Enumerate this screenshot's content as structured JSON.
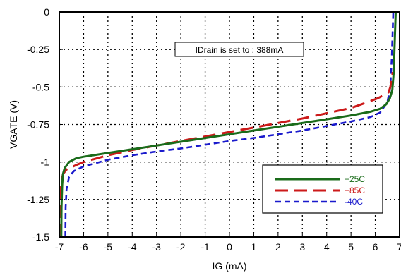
{
  "chart_data": {
    "type": "line",
    "xlabel": "IG (mA)",
    "ylabel": "VGATE (V)",
    "xlim": [
      -7,
      7
    ],
    "ylim": [
      -1.5,
      0
    ],
    "xticks": [
      -7,
      -6,
      -5,
      -4,
      -3,
      -2,
      -1,
      0,
      1,
      2,
      3,
      4,
      5,
      6,
      7
    ],
    "xtick_labels": [
      "-7",
      "-6",
      "-5",
      "-4",
      "-3",
      "-2",
      "-1",
      "0",
      "1",
      "2",
      "3",
      "4",
      "5",
      "6",
      "7"
    ],
    "yticks": [
      0,
      -0.25,
      -0.5,
      -0.75,
      -1,
      -1.25,
      -1.5
    ],
    "ytick_labels": [
      "0",
      "-0.25",
      "-0.5",
      "-0.75",
      "-1",
      "-1.25",
      "-1.5"
    ],
    "grid": true,
    "legend_position": "bottom-right",
    "annotation": "IDrain is set to : 388mA",
    "series": [
      {
        "name": "+25C",
        "color": "#1a6b1a",
        "dash": "solid",
        "points": [
          [
            -6.92,
            -1.5
          ],
          [
            -6.91,
            -1.3
          ],
          [
            -6.88,
            -1.15
          ],
          [
            -6.85,
            -1.08
          ],
          [
            -6.78,
            -1.04
          ],
          [
            -6.6,
            -1.0
          ],
          [
            -6.3,
            -0.975
          ],
          [
            -6,
            -0.965
          ],
          [
            -5,
            -0.94
          ],
          [
            -4,
            -0.915
          ],
          [
            -3,
            -0.89
          ],
          [
            -2,
            -0.865
          ],
          [
            -1,
            -0.84
          ],
          [
            0,
            -0.815
          ],
          [
            1,
            -0.79
          ],
          [
            2,
            -0.765
          ],
          [
            3,
            -0.74
          ],
          [
            4,
            -0.715
          ],
          [
            5,
            -0.69
          ],
          [
            5.8,
            -0.665
          ],
          [
            6.2,
            -0.645
          ],
          [
            6.45,
            -0.615
          ],
          [
            6.6,
            -0.575
          ],
          [
            6.7,
            -0.52
          ],
          [
            6.76,
            -0.4
          ],
          [
            6.8,
            -0.2
          ],
          [
            6.84,
            0
          ]
        ]
      },
      {
        "name": "+85C",
        "color": "#cc1a1a",
        "dash": "long-dash",
        "points": [
          [
            -6.99,
            -1.5
          ],
          [
            -6.97,
            -1.3
          ],
          [
            -6.92,
            -1.14
          ],
          [
            -6.85,
            -1.08
          ],
          [
            -6.7,
            -1.05
          ],
          [
            -6.3,
            -1.02
          ],
          [
            -6,
            -1.0
          ],
          [
            -5,
            -0.955
          ],
          [
            -4,
            -0.92
          ],
          [
            -3,
            -0.89
          ],
          [
            -2,
            -0.86
          ],
          [
            -1,
            -0.83
          ],
          [
            0,
            -0.8
          ],
          [
            1,
            -0.77
          ],
          [
            2,
            -0.74
          ],
          [
            3,
            -0.71
          ],
          [
            4,
            -0.675
          ],
          [
            5,
            -0.64
          ],
          [
            5.7,
            -0.6
          ],
          [
            6.1,
            -0.575
          ],
          [
            6.35,
            -0.555
          ],
          [
            6.55,
            -0.535
          ],
          [
            6.62,
            -0.5
          ],
          [
            6.68,
            -0.45
          ],
          [
            6.72,
            -0.4
          ]
        ]
      },
      {
        "name": "-40C",
        "color": "#1a1acc",
        "dash": "short-dash",
        "points": [
          [
            -6.75,
            -1.5
          ],
          [
            -6.74,
            -1.3
          ],
          [
            -6.7,
            -1.18
          ],
          [
            -6.6,
            -1.1
          ],
          [
            -6.4,
            -1.06
          ],
          [
            -6,
            -1.03
          ],
          [
            -5,
            -0.985
          ],
          [
            -4,
            -0.955
          ],
          [
            -3,
            -0.93
          ],
          [
            -2,
            -0.91
          ],
          [
            -1,
            -0.885
          ],
          [
            0,
            -0.86
          ],
          [
            1,
            -0.84
          ],
          [
            2,
            -0.815
          ],
          [
            3,
            -0.79
          ],
          [
            4,
            -0.76
          ],
          [
            5,
            -0.73
          ],
          [
            5.8,
            -0.7
          ],
          [
            6.2,
            -0.67
          ],
          [
            6.5,
            -0.6
          ],
          [
            6.62,
            -0.5
          ],
          [
            6.68,
            -0.3
          ],
          [
            6.72,
            -0.1
          ],
          [
            6.74,
            0
          ]
        ]
      }
    ]
  }
}
